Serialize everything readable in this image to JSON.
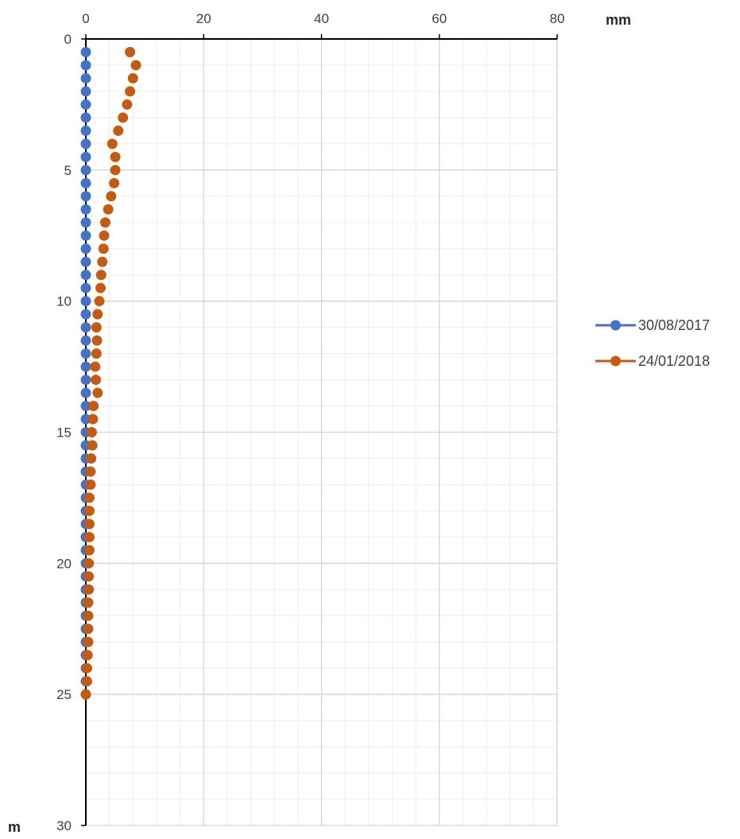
{
  "chart_data": {
    "type": "scatter",
    "x_unit": "mm",
    "y_unit": "m",
    "xlim": [
      0,
      80
    ],
    "ylim": [
      0,
      30
    ],
    "x_ticks": [
      0,
      20,
      40,
      60,
      80
    ],
    "y_ticks": [
      0,
      5,
      10,
      15,
      20,
      25,
      30
    ],
    "x_axis_position": "top",
    "y_axis_reversed": true,
    "grid": true,
    "minor_grid": true,
    "legend_position": "right",
    "series": [
      {
        "name": "30/08/2017",
        "color": "#4472C4",
        "points": [
          [
            0,
            0.5
          ],
          [
            0,
            1.0
          ],
          [
            0,
            1.5
          ],
          [
            0,
            2.0
          ],
          [
            0,
            2.5
          ],
          [
            0,
            3.0
          ],
          [
            0,
            3.5
          ],
          [
            0,
            4.0
          ],
          [
            0,
            4.5
          ],
          [
            0,
            5.0
          ],
          [
            0,
            5.5
          ],
          [
            0,
            6.0
          ],
          [
            0,
            6.5
          ],
          [
            0,
            7.0
          ],
          [
            0,
            7.5
          ],
          [
            0,
            8.0
          ],
          [
            0,
            8.5
          ],
          [
            0,
            9.0
          ],
          [
            0,
            9.5
          ],
          [
            0,
            10.0
          ],
          [
            0,
            10.5
          ],
          [
            0,
            11.0
          ],
          [
            0,
            11.5
          ],
          [
            0,
            12.0
          ],
          [
            0,
            12.5
          ],
          [
            0,
            13.0
          ],
          [
            0,
            13.5
          ],
          [
            0,
            14.0
          ],
          [
            0,
            14.5
          ],
          [
            0,
            15.0
          ],
          [
            0,
            15.5
          ],
          [
            0,
            16.0
          ],
          [
            0,
            16.5
          ],
          [
            0,
            17.0
          ],
          [
            0,
            17.5
          ],
          [
            0,
            18.0
          ],
          [
            0,
            18.5
          ],
          [
            0,
            19.0
          ],
          [
            0,
            19.5
          ],
          [
            0,
            20.0
          ],
          [
            0,
            20.5
          ],
          [
            0,
            21.0
          ],
          [
            0,
            21.5
          ],
          [
            0,
            22.0
          ],
          [
            0,
            22.5
          ],
          [
            0,
            23.0
          ],
          [
            0,
            23.5
          ],
          [
            0,
            24.0
          ],
          [
            0,
            24.5
          ],
          [
            0,
            25.0
          ]
        ]
      },
      {
        "name": "24/01/2018",
        "color": "#C55A11",
        "points": [
          [
            7.5,
            0.5
          ],
          [
            8.5,
            1.0
          ],
          [
            8.0,
            1.5
          ],
          [
            7.5,
            2.0
          ],
          [
            7.0,
            2.5
          ],
          [
            6.3,
            3.0
          ],
          [
            5.5,
            3.5
          ],
          [
            4.5,
            4.0
          ],
          [
            5.0,
            4.5
          ],
          [
            5.0,
            5.0
          ],
          [
            4.8,
            5.5
          ],
          [
            4.3,
            6.0
          ],
          [
            3.8,
            6.5
          ],
          [
            3.3,
            7.0
          ],
          [
            3.1,
            7.5
          ],
          [
            3.0,
            8.0
          ],
          [
            2.8,
            8.5
          ],
          [
            2.6,
            9.0
          ],
          [
            2.5,
            9.5
          ],
          [
            2.3,
            10.0
          ],
          [
            2.0,
            10.5
          ],
          [
            1.8,
            11.0
          ],
          [
            1.9,
            11.5
          ],
          [
            1.8,
            12.0
          ],
          [
            1.6,
            12.5
          ],
          [
            1.7,
            13.0
          ],
          [
            2.0,
            13.5
          ],
          [
            1.3,
            14.0
          ],
          [
            1.2,
            14.5
          ],
          [
            1.0,
            15.0
          ],
          [
            1.1,
            15.5
          ],
          [
            0.9,
            16.0
          ],
          [
            0.8,
            16.5
          ],
          [
            0.8,
            17.0
          ],
          [
            0.6,
            17.5
          ],
          [
            0.6,
            18.0
          ],
          [
            0.6,
            18.5
          ],
          [
            0.6,
            19.0
          ],
          [
            0.6,
            19.5
          ],
          [
            0.5,
            20.0
          ],
          [
            0.5,
            20.5
          ],
          [
            0.5,
            21.0
          ],
          [
            0.4,
            21.5
          ],
          [
            0.4,
            22.0
          ],
          [
            0.4,
            22.5
          ],
          [
            0.4,
            23.0
          ],
          [
            0.3,
            23.5
          ],
          [
            0.2,
            24.0
          ],
          [
            0.2,
            24.5
          ],
          [
            0.0,
            25.0
          ]
        ]
      }
    ]
  }
}
